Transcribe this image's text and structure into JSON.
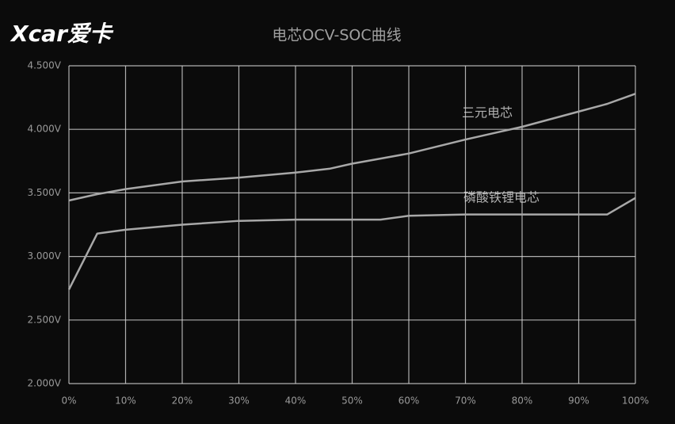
{
  "watermark": "Xcar爱卡",
  "chart_data": {
    "type": "line",
    "title": "电芯OCV-SOC曲线",
    "x": [
      0,
      5,
      10,
      20,
      30,
      40,
      46,
      50,
      55,
      60,
      70,
      80,
      90,
      95,
      100
    ],
    "series": [
      {
        "name": "三元电芯",
        "color": "#a8a8a8",
        "values": [
          3.44,
          3.49,
          3.53,
          3.59,
          3.62,
          3.66,
          3.69,
          3.73,
          3.77,
          3.81,
          3.92,
          4.02,
          4.14,
          4.2,
          4.28
        ]
      },
      {
        "name": "磷酸铁锂电芯",
        "color": "#a8a8a8",
        "values": [
          2.74,
          3.18,
          3.21,
          3.25,
          3.28,
          3.29,
          3.29,
          3.29,
          3.29,
          3.32,
          3.33,
          3.33,
          3.33,
          3.33,
          3.46
        ]
      }
    ],
    "xlim": [
      0,
      100
    ],
    "xticks": [
      {
        "value": 0,
        "label": "0%"
      },
      {
        "value": 10,
        "label": "10%"
      },
      {
        "value": 20,
        "label": "20%"
      },
      {
        "value": 30,
        "label": "30%"
      },
      {
        "value": 40,
        "label": "40%"
      },
      {
        "value": 50,
        "label": "50%"
      },
      {
        "value": 60,
        "label": "60%"
      },
      {
        "value": 70,
        "label": "70%"
      },
      {
        "value": 80,
        "label": "80%"
      },
      {
        "value": 90,
        "label": "90%"
      },
      {
        "value": 100,
        "label": "100%"
      }
    ],
    "ylim": [
      2,
      4.5
    ],
    "yticks": [
      {
        "value": 2,
        "label": "2.000V"
      },
      {
        "value": 2.5,
        "label": "2.500V"
      },
      {
        "value": 3,
        "label": "3.000V"
      },
      {
        "value": 3.5,
        "label": "3.500V"
      },
      {
        "value": 4,
        "label": "4.000V"
      },
      {
        "value": 4.5,
        "label": "4.500V"
      }
    ],
    "grid": true
  }
}
